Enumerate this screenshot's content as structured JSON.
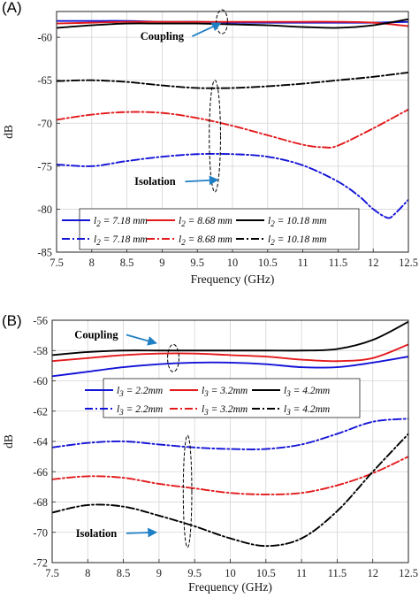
{
  "colors": {
    "blue": "#1414d8",
    "red": "#e31a1c",
    "black": "#000000",
    "arrow": "#1f7fc4"
  },
  "chart_data": [
    {
      "type": "line",
      "panel_label": "(A)",
      "xlabel": "Frequency (GHz)",
      "ylabel": "dB",
      "xlim": [
        7.5,
        12.5
      ],
      "ylim": [
        -85,
        -57
      ],
      "xticks": [
        "7.5",
        "8",
        "8.5",
        "9",
        "9.5",
        "10",
        "10.5",
        "11",
        "11.5",
        "12",
        "12.5"
      ],
      "yticks": [
        "-60",
        "-65",
        "-70",
        "-75",
        "-80",
        "-85"
      ],
      "grid": true,
      "legend": {
        "placement": "lower-center",
        "entries": [
          [
            "l",
            "2",
            " = 7.18 mm",
            "blue",
            "solid"
          ],
          [
            "l",
            "2",
            " = 8.68 mm",
            "red",
            "solid"
          ],
          [
            "l",
            "2",
            " = 10.18 mm",
            "black",
            "solid"
          ],
          [
            "l",
            "2",
            " = 7.18 mm",
            "blue",
            "dashdot"
          ],
          [
            "l",
            "2",
            " = 8.68 mm",
            "red",
            "dashdot"
          ],
          [
            "l",
            "2",
            " = 10.18 mm",
            "black",
            "dashdot"
          ]
        ]
      },
      "annotations": [
        {
          "text": "Coupling",
          "at": [
            9.0,
            -60.3
          ],
          "arrow_to": [
            9.82,
            -58.4
          ],
          "ellipse": [
            9.85,
            -58.2,
            0.08,
            1.4
          ]
        },
        {
          "text": "Isolation",
          "at": [
            8.9,
            -77.2
          ],
          "arrow_to": [
            9.78,
            -76.6
          ],
          "ellipse": [
            9.75,
            -71.5,
            0.08,
            6.5
          ]
        }
      ],
      "series": [
        {
          "label": "l2 = 7.18 mm (coupling)",
          "color": "blue",
          "style": "solid",
          "x": [
            7.5,
            8,
            8.5,
            9,
            9.5,
            10,
            10.5,
            11,
            11.5,
            12,
            12.5
          ],
          "y": [
            -58.1,
            -58.1,
            -58.1,
            -58.2,
            -58.2,
            -58.3,
            -58.3,
            -58.3,
            -58.3,
            -58.3,
            -58.2
          ]
        },
        {
          "label": "l2 = 8.68 mm (coupling)",
          "color": "red",
          "style": "solid",
          "x": [
            7.5,
            8,
            8.5,
            9,
            9.5,
            10,
            10.5,
            11,
            11.5,
            12,
            12.5
          ],
          "y": [
            -58.4,
            -58.3,
            -58.2,
            -58.2,
            -58.2,
            -58.2,
            -58.2,
            -58.2,
            -58.2,
            -58.3,
            -58.7
          ]
        },
        {
          "label": "l2 = 10.18 mm (coupling)",
          "color": "black",
          "style": "solid",
          "x": [
            7.5,
            8,
            8.5,
            9,
            9.5,
            10,
            10.5,
            11,
            11.5,
            12,
            12.5
          ],
          "y": [
            -58.9,
            -58.6,
            -58.4,
            -58.4,
            -58.4,
            -58.5,
            -58.6,
            -58.8,
            -58.9,
            -58.6,
            -57.9
          ]
        },
        {
          "label": "l2 = 7.18 mm (isolation)",
          "color": "blue",
          "style": "dashdot",
          "x": [
            7.5,
            8,
            8.5,
            9,
            9.5,
            10,
            10.5,
            11,
            11.5,
            11.8,
            12,
            12.2,
            12.3,
            12.5
          ],
          "y": [
            -74.8,
            -75.0,
            -74.4,
            -73.9,
            -73.6,
            -73.6,
            -73.9,
            -74.9,
            -76.8,
            -78.5,
            -80.0,
            -81.0,
            -80.6,
            -78.9
          ]
        },
        {
          "label": "l2 = 8.68 mm (isolation)",
          "color": "red",
          "style": "dashdot",
          "x": [
            7.5,
            8,
            8.5,
            9,
            9.5,
            10,
            10.5,
            11,
            11.3,
            11.5,
            12,
            12.5
          ],
          "y": [
            -69.6,
            -69.0,
            -68.7,
            -68.8,
            -69.4,
            -70.3,
            -71.4,
            -72.5,
            -72.8,
            -72.6,
            -70.6,
            -68.4
          ]
        },
        {
          "label": "l2 = 10.18 mm (isolation)",
          "color": "black",
          "style": "dashdot",
          "x": [
            7.5,
            8,
            8.5,
            9,
            9.5,
            10,
            10.5,
            11,
            11.5,
            12,
            12.5
          ],
          "y": [
            -65.1,
            -65.0,
            -65.2,
            -65.6,
            -65.9,
            -65.9,
            -65.7,
            -65.4,
            -65.0,
            -64.6,
            -64.1
          ]
        }
      ]
    },
    {
      "type": "line",
      "panel_label": "(B)",
      "xlabel": "Frequency (GHz)",
      "ylabel": "dB",
      "xlim": [
        7.5,
        12.5
      ],
      "ylim": [
        -72,
        -56
      ],
      "xticks": [
        "7.5",
        "8",
        "8.5",
        "9",
        "9.5",
        "10",
        "10.5",
        "11",
        "11.5",
        "12",
        "12.5"
      ],
      "yticks": [
        "-56",
        "-58",
        "-60",
        "-62",
        "-64",
        "-66",
        "-68",
        "-70",
        "-72"
      ],
      "grid": true,
      "legend": {
        "placement": "top-right",
        "entries": [
          [
            "l",
            "3",
            " = 2.2mm",
            "blue",
            "solid"
          ],
          [
            "l",
            "3",
            " = 3.2mm",
            "red",
            "solid"
          ],
          [
            "l",
            "3",
            " = 4.2mm",
            "black",
            "solid"
          ],
          [
            "l",
            "3",
            " = 2.2mm",
            "blue",
            "dashdot"
          ],
          [
            "l",
            "3",
            " = 3.2mm",
            "red",
            "dashdot"
          ],
          [
            "l",
            "3",
            " = 4.2mm",
            "black",
            "dashdot"
          ]
        ]
      },
      "annotations": [
        {
          "text": "Coupling",
          "at": [
            8.12,
            -57.2
          ],
          "arrow_to": [
            8.95,
            -57.5
          ],
          "ellipse": [
            9.2,
            -58.5,
            0.08,
            0.9
          ]
        },
        {
          "text": "Isolation",
          "at": [
            8.12,
            -70.3
          ],
          "arrow_to": [
            8.95,
            -70.0
          ],
          "ellipse": [
            9.4,
            -67.3,
            0.06,
            3.7
          ]
        }
      ],
      "series": [
        {
          "label": "l3 = 2.2mm (coupling)",
          "color": "blue",
          "style": "solid",
          "x": [
            7.5,
            8,
            8.5,
            9,
            9.5,
            10,
            10.5,
            11,
            11.5,
            12,
            12.5
          ],
          "y": [
            -59.7,
            -59.4,
            -59.1,
            -58.9,
            -58.8,
            -58.8,
            -58.9,
            -59.1,
            -59.1,
            -58.8,
            -58.4
          ]
        },
        {
          "label": "l3 = 3.2mm (coupling)",
          "color": "red",
          "style": "solid",
          "x": [
            7.5,
            8,
            8.5,
            9,
            9.5,
            10,
            10.5,
            11,
            11.5,
            12,
            12.5
          ],
          "y": [
            -58.7,
            -58.5,
            -58.3,
            -58.2,
            -58.2,
            -58.3,
            -58.4,
            -58.6,
            -58.7,
            -58.5,
            -57.6
          ]
        },
        {
          "label": "l3 = 4.2mm (coupling)",
          "color": "black",
          "style": "solid",
          "x": [
            7.5,
            8,
            8.5,
            9,
            9.5,
            10,
            10.5,
            11,
            11.5,
            12,
            12.5
          ],
          "y": [
            -58.3,
            -58.1,
            -58.0,
            -58.0,
            -58.0,
            -58.0,
            -58.0,
            -58.0,
            -57.9,
            -57.3,
            -56.1
          ]
        },
        {
          "label": "l3 = 2.2mm (isolation)",
          "color": "blue",
          "style": "dashdot",
          "x": [
            7.5,
            8,
            8.5,
            9,
            9.5,
            10,
            10.5,
            11,
            11.5,
            12,
            12.5
          ],
          "y": [
            -64.4,
            -64.1,
            -64.0,
            -64.2,
            -64.4,
            -64.5,
            -64.5,
            -64.2,
            -63.5,
            -62.7,
            -62.5
          ]
        },
        {
          "label": "l3 = 3.2mm (isolation)",
          "color": "red",
          "style": "dashdot",
          "x": [
            7.5,
            8,
            8.5,
            9,
            9.5,
            10,
            10.5,
            11,
            11.5,
            12,
            12.5
          ],
          "y": [
            -66.5,
            -66.3,
            -66.4,
            -66.8,
            -67.1,
            -67.4,
            -67.5,
            -67.4,
            -66.9,
            -66.1,
            -65.0
          ]
        },
        {
          "label": "l3 = 4.2mm (isolation)",
          "color": "black",
          "style": "dashdot",
          "x": [
            7.5,
            8,
            8.5,
            9,
            9.5,
            10,
            10.5,
            11,
            11.5,
            12,
            12.5
          ],
          "y": [
            -68.7,
            -68.2,
            -68.3,
            -68.9,
            -69.6,
            -70.4,
            -70.9,
            -70.4,
            -68.6,
            -66.0,
            -63.5
          ]
        }
      ]
    }
  ]
}
